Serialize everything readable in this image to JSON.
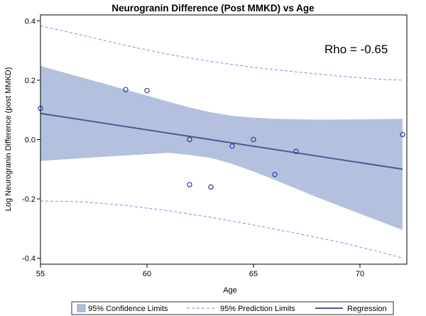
{
  "chart_data": {
    "type": "scatter",
    "title": "Neurogranin Difference (Post MMKD) vs Age",
    "xlabel": "Age",
    "ylabel": "Log Neurogranin Difference (post MMKD)",
    "xlim": [
      55,
      72.2
    ],
    "ylim": [
      -0.42,
      0.42
    ],
    "x_ticks": [
      55,
      60,
      65,
      70
    ],
    "y_ticks": [
      -0.4,
      -0.2,
      0.0,
      0.2,
      0.4
    ],
    "x_tick_labels": [
      "55",
      "60",
      "65",
      "70"
    ],
    "y_tick_labels": [
      "-0.4",
      "-0.2",
      "0.0",
      "0.2",
      "0.4"
    ],
    "annotation": "Rho = -0.65",
    "points": [
      {
        "x": 55,
        "y": 0.105
      },
      {
        "x": 59,
        "y": 0.168
      },
      {
        "x": 60,
        "y": 0.165
      },
      {
        "x": 62,
        "y": 0.0
      },
      {
        "x": 62,
        "y": -0.152
      },
      {
        "x": 63,
        "y": -0.16
      },
      {
        "x": 64,
        "y": -0.022
      },
      {
        "x": 65,
        "y": 0.0
      },
      {
        "x": 66,
        "y": -0.118
      },
      {
        "x": 67,
        "y": -0.04
      },
      {
        "x": 72,
        "y": 0.017
      }
    ],
    "regression": {
      "x": [
        55,
        72
      ],
      "y": [
        0.088,
        -0.1
      ]
    },
    "confidence_band": {
      "x": [
        55,
        58,
        61,
        62,
        63,
        64,
        65,
        66,
        68,
        70,
        72
      ],
      "lower": [
        -0.072,
        -0.058,
        -0.045,
        -0.052,
        -0.062,
        -0.082,
        -0.108,
        -0.136,
        -0.195,
        -0.25,
        -0.305
      ],
      "upper": [
        0.248,
        0.188,
        0.128,
        0.108,
        0.092,
        0.08,
        0.074,
        0.07,
        0.067,
        0.068,
        0.07
      ]
    },
    "prediction_limits": {
      "x": [
        55,
        57,
        59,
        61,
        63,
        65,
        67,
        69,
        71,
        72
      ],
      "lower": [
        -0.207,
        -0.21,
        -0.222,
        -0.24,
        -0.262,
        -0.288,
        -0.316,
        -0.345,
        -0.38,
        -0.4
      ],
      "upper": [
        0.383,
        0.351,
        0.317,
        0.287,
        0.263,
        0.243,
        0.228,
        0.214,
        0.203,
        0.2
      ]
    },
    "legend": {
      "position": "bottom",
      "entries": [
        {
          "label": "95% Confidence Limits",
          "kind": "band"
        },
        {
          "label": "95% Prediction Limits",
          "kind": "dashed"
        },
        {
          "label": "Regression",
          "kind": "line"
        }
      ]
    },
    "colors": {
      "band_fill": "#b3c1df",
      "regression": "#4a5c8f",
      "prediction": "#8f86df",
      "marker": "#2b3d9c",
      "axis": "#000000"
    }
  }
}
